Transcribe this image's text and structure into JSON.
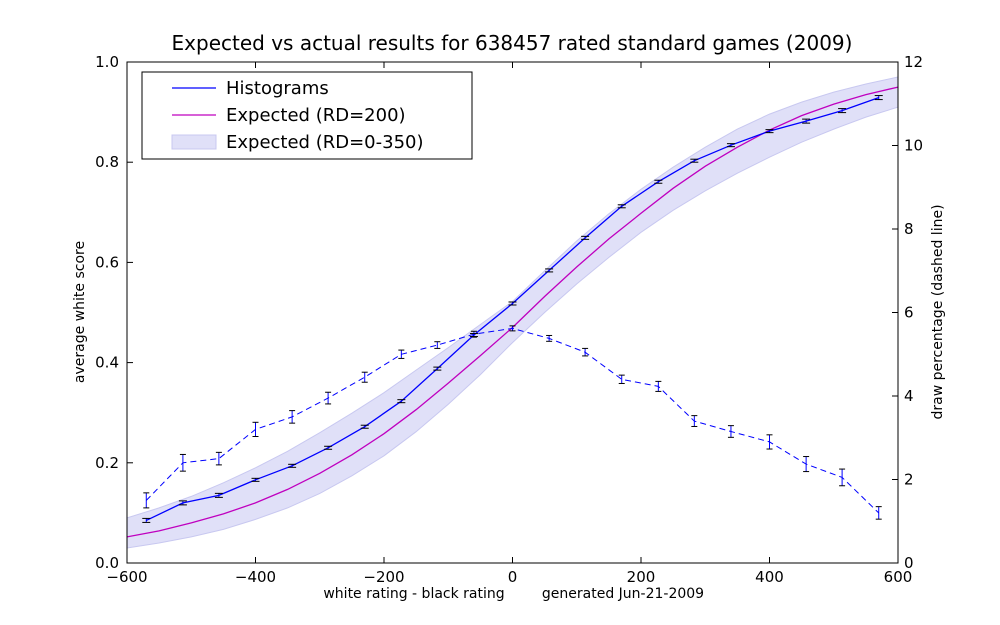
{
  "chart_data": {
    "type": "line",
    "title": "Expected vs actual results for 638457 rated standard games (2009)",
    "xlabel": "white rating - black rating",
    "footnote": "generated Jun-21-2009",
    "ylabel": "average white score",
    "y2label": "draw percentage (dashed line)",
    "xlim": [
      -600,
      600
    ],
    "ylim": [
      0.0,
      1.0
    ],
    "y2lim": [
      0,
      12
    ],
    "xticks": [
      -600,
      -400,
      -200,
      0,
      200,
      400,
      600
    ],
    "xtick_labels": [
      "−600",
      "−400",
      "−200",
      "0",
      "200",
      "400",
      "600"
    ],
    "yticks": [
      0.0,
      0.2,
      0.4,
      0.6,
      0.8,
      1.0
    ],
    "ytick_labels": [
      "0.0",
      "0.2",
      "0.4",
      "0.6",
      "0.8",
      "1.0"
    ],
    "y2ticks": [
      0,
      2,
      4,
      6,
      8,
      10,
      12
    ],
    "y2tick_labels": [
      "0",
      "2",
      "4",
      "6",
      "8",
      "10",
      "12"
    ],
    "legend_position": "top-left",
    "colors": {
      "histograms": "#0000ff",
      "expected": "#bf00bf",
      "band_fill": "#e0e0f8",
      "band_edge": "#c8c8f0",
      "draws": "#0000ff"
    },
    "series": [
      {
        "name": "Histograms",
        "axis": "left",
        "style": "solid",
        "errorbars": true,
        "x": [
          -570,
          -513,
          -457,
          -400,
          -343,
          -287,
          -230,
          -173,
          -117,
          -60,
          0,
          57,
          113,
          170,
          227,
          283,
          340,
          400,
          457,
          513,
          570
        ],
        "y": [
          0.085,
          0.12,
          0.135,
          0.166,
          0.194,
          0.23,
          0.272,
          0.323,
          0.388,
          0.455,
          0.518,
          0.584,
          0.649,
          0.712,
          0.761,
          0.803,
          0.834,
          0.862,
          0.882,
          0.903,
          0.929
        ],
        "err": [
          0.004,
          0.004,
          0.004,
          0.003,
          0.003,
          0.003,
          0.003,
          0.003,
          0.003,
          0.003,
          0.003,
          0.003,
          0.003,
          0.003,
          0.003,
          0.003,
          0.003,
          0.003,
          0.004,
          0.004,
          0.004
        ]
      },
      {
        "name": "Expected (RD=200)",
        "axis": "left",
        "style": "solid",
        "x": [
          -600,
          -550,
          -500,
          -450,
          -400,
          -350,
          -300,
          -250,
          -200,
          -150,
          -100,
          -50,
          0,
          50,
          100,
          150,
          200,
          250,
          300,
          350,
          400,
          450,
          500,
          550,
          600
        ],
        "y": [
          0.052,
          0.064,
          0.08,
          0.098,
          0.12,
          0.147,
          0.179,
          0.216,
          0.258,
          0.306,
          0.359,
          0.414,
          0.47,
          0.532,
          0.591,
          0.647,
          0.698,
          0.748,
          0.792,
          0.83,
          0.864,
          0.893,
          0.916,
          0.935,
          0.95
        ]
      },
      {
        "name": "Expected (RD=0-350)",
        "axis": "left",
        "style": "band",
        "x": [
          -600,
          -550,
          -500,
          -450,
          -400,
          -350,
          -300,
          -250,
          -200,
          -150,
          -100,
          -50,
          0,
          50,
          100,
          150,
          200,
          250,
          300,
          350,
          400,
          450,
          500,
          550,
          600
        ],
        "lower": [
          0.03,
          0.04,
          0.052,
          0.067,
          0.087,
          0.11,
          0.139,
          0.174,
          0.214,
          0.262,
          0.317,
          0.376,
          0.44,
          0.5,
          0.557,
          0.61,
          0.66,
          0.704,
          0.743,
          0.778,
          0.81,
          0.84,
          0.866,
          0.89,
          0.91
        ],
        "upper": [
          0.09,
          0.11,
          0.133,
          0.16,
          0.19,
          0.223,
          0.26,
          0.299,
          0.34,
          0.385,
          0.43,
          0.476,
          0.522,
          0.583,
          0.643,
          0.697,
          0.746,
          0.79,
          0.83,
          0.866,
          0.896,
          0.92,
          0.94,
          0.956,
          0.97
        ]
      },
      {
        "axis": "right",
        "style": "dashed",
        "errorbars": true,
        "x": [
          -570,
          -513,
          -457,
          -400,
          -343,
          -287,
          -230,
          -173,
          -117,
          -60,
          0,
          57,
          113,
          170,
          227,
          283,
          340,
          400,
          457,
          513,
          570
        ],
        "y": [
          1.5,
          2.4,
          2.5,
          3.2,
          3.5,
          3.95,
          4.45,
          5.0,
          5.22,
          5.48,
          5.62,
          5.38,
          5.05,
          4.4,
          4.23,
          3.4,
          3.15,
          2.9,
          2.37,
          2.05,
          1.2
        ],
        "err": [
          0.18,
          0.2,
          0.15,
          0.17,
          0.15,
          0.14,
          0.12,
          0.1,
          0.08,
          0.07,
          0.06,
          0.07,
          0.09,
          0.1,
          0.12,
          0.13,
          0.14,
          0.17,
          0.18,
          0.2,
          0.15
        ]
      }
    ]
  }
}
